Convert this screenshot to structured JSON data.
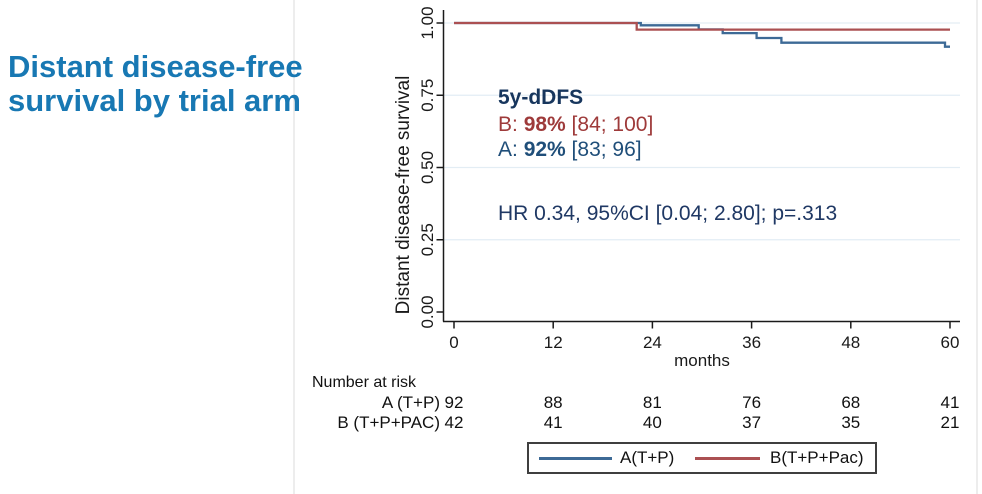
{
  "slide": {
    "title_lines": [
      "Distant disease-free",
      "survival by trial arm"
    ],
    "title_color": "#1878b3",
    "divider_color": "#ededed",
    "edge_color": "#d9d9d9"
  },
  "annotations": {
    "header": "5y-dDFS",
    "header_color": "#17365d",
    "b_prefix": "B: ",
    "b_value": "98%",
    "b_ci": " [84; 100]",
    "b_color": "#9e3a3a",
    "a_prefix": "A: ",
    "a_value": "92%",
    "a_ci": " [83; 96]",
    "a_color": "#1f4e79",
    "hr_text": "HR 0.34, 95%CI [0.04; 2.80]; p=.313",
    "hr_color": "#1f3864"
  },
  "chart_data": {
    "type": "line",
    "subtype": "kaplan-meier-step",
    "title": "",
    "xlabel": "months",
    "ylabel": "Distant disease-free survival",
    "xlim": [
      0,
      60
    ],
    "ylim": [
      0.0,
      1.0
    ],
    "x_ticks": [
      0,
      12,
      24,
      36,
      48,
      60
    ],
    "y_ticks": [
      0.0,
      0.25,
      0.5,
      0.75,
      1.0
    ],
    "y_tick_labels": [
      "0.00",
      "0.25",
      "0.50",
      "0.75",
      "1.00"
    ],
    "grid": true,
    "legend_position": "bottom",
    "colors": {
      "grid": "#e3edf4",
      "axis": "#1a1a1a"
    },
    "series": [
      {
        "id": "a",
        "name": "A(T+P)",
        "color": "#3d6a96",
        "points": [
          [
            0,
            1.0
          ],
          [
            22.6,
            1.0
          ],
          [
            22.6,
            0.992
          ],
          [
            29.6,
            0.992
          ],
          [
            29.6,
            0.978
          ],
          [
            32.5,
            0.978
          ],
          [
            32.5,
            0.965
          ],
          [
            36.6,
            0.965
          ],
          [
            36.6,
            0.948
          ],
          [
            39.6,
            0.948
          ],
          [
            39.6,
            0.932
          ],
          [
            59.4,
            0.932
          ],
          [
            59.4,
            0.918
          ],
          [
            60,
            0.918
          ]
        ]
      },
      {
        "id": "b",
        "name": "B(T+P+Pac)",
        "color": "#ab5052",
        "points": [
          [
            0,
            1.0
          ],
          [
            22.1,
            1.0
          ],
          [
            22.1,
            0.977
          ],
          [
            60,
            0.977
          ]
        ]
      }
    ],
    "estimates": {
      "B_5y_dDFS": "98% [84; 100]",
      "A_5y_dDFS": "92% [83; 96]",
      "HR": "0.34",
      "CI95": "[0.04; 2.80]",
      "p": ".313"
    },
    "at_risk": {
      "title": "Number at risk",
      "rows": [
        {
          "label": "A (T+P)",
          "values": [
            "92",
            "88",
            "81",
            "76",
            "68",
            "41"
          ]
        },
        {
          "label": "B (T+P+PAC)",
          "values": [
            "42",
            "41",
            "40",
            "37",
            "35",
            "21"
          ]
        }
      ]
    }
  },
  "legend": {
    "items": [
      {
        "label": "A(T+P)",
        "color": "#3d6a96"
      },
      {
        "label": "B(T+P+Pac)",
        "color": "#ab5052"
      }
    ]
  }
}
